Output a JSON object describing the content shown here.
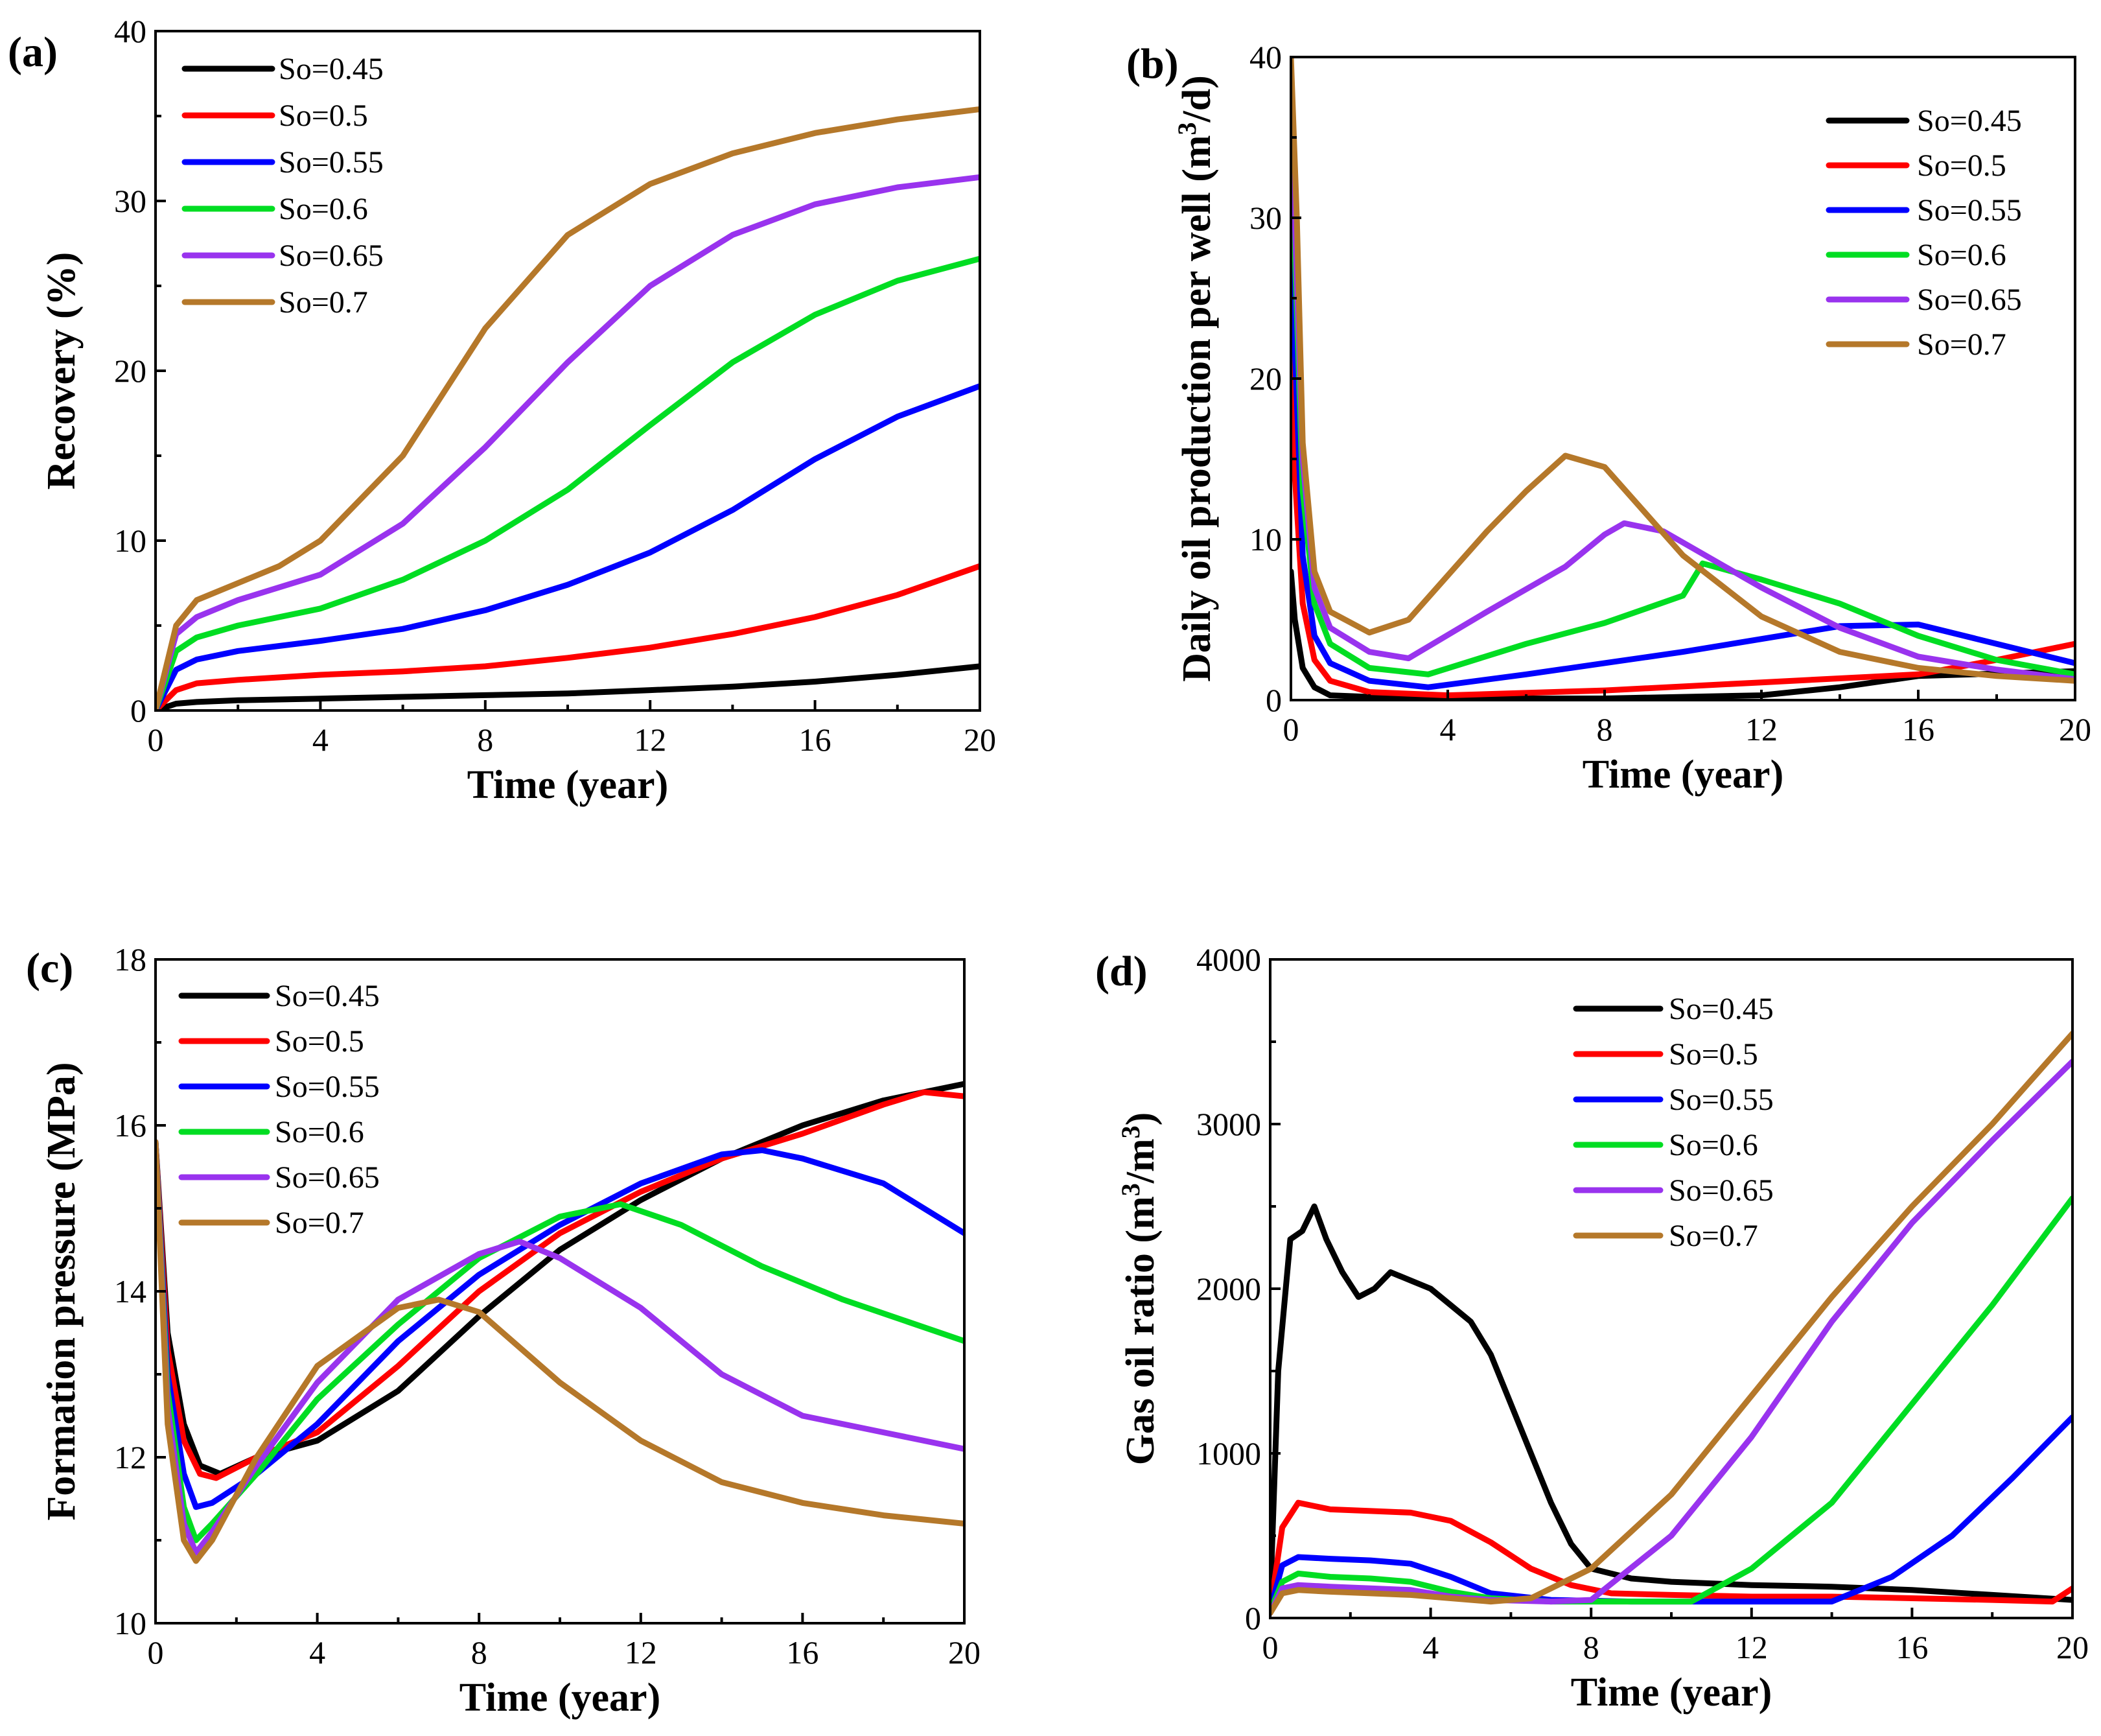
{
  "series_colors": [
    "#000000",
    "#ff0000",
    "#0000ff",
    "#00dd22",
    "#9933ee",
    "#b5782a"
  ],
  "chart_data": [
    {
      "type": "line",
      "panel_label": "(a)",
      "xlabel": "Time (year)",
      "ylabel": "Recovery (%)",
      "xlim": [
        0,
        20
      ],
      "ylim": [
        0,
        40
      ],
      "xticks": [
        "0",
        "4",
        "8",
        "12",
        "16",
        "20"
      ],
      "yticks": [
        "0",
        "10",
        "20",
        "30",
        "40"
      ],
      "legend_position": "top-left",
      "series": [
        {
          "name": "So=0.45",
          "x": [
            0,
            0.5,
            1,
            2,
            4,
            6,
            8,
            10,
            12,
            14,
            16,
            18,
            20
          ],
          "values": [
            0,
            0.4,
            0.5,
            0.6,
            0.7,
            0.8,
            0.9,
            1.0,
            1.2,
            1.4,
            1.7,
            2.1,
            2.6
          ]
        },
        {
          "name": "So=0.5",
          "x": [
            0,
            0.5,
            1,
            2,
            4,
            6,
            8,
            10,
            12,
            14,
            16,
            18,
            20
          ],
          "values": [
            0,
            1.2,
            1.6,
            1.8,
            2.1,
            2.3,
            2.6,
            3.1,
            3.7,
            4.5,
            5.5,
            6.8,
            8.5
          ]
        },
        {
          "name": "So=0.55",
          "x": [
            0,
            0.5,
            1,
            2,
            4,
            6,
            8,
            10,
            12,
            14,
            16,
            18,
            20
          ],
          "values": [
            0,
            2.4,
            3.0,
            3.5,
            4.1,
            4.8,
            5.9,
            7.4,
            9.3,
            11.8,
            14.8,
            17.3,
            19.1
          ]
        },
        {
          "name": "So=0.6",
          "x": [
            0,
            0.5,
            1,
            2,
            4,
            6,
            8,
            10,
            12,
            14,
            16,
            18,
            20
          ],
          "values": [
            0,
            3.5,
            4.3,
            5.0,
            6.0,
            7.7,
            10.0,
            13.0,
            16.8,
            20.5,
            23.3,
            25.3,
            26.6
          ]
        },
        {
          "name": "So=0.65",
          "x": [
            0,
            0.5,
            1,
            2,
            4,
            6,
            8,
            10,
            12,
            14,
            16,
            18,
            20
          ],
          "values": [
            0,
            4.5,
            5.5,
            6.5,
            8.0,
            11.0,
            15.5,
            20.5,
            25.0,
            28.0,
            29.8,
            30.8,
            31.4
          ]
        },
        {
          "name": "So=0.7",
          "x": [
            0,
            0.5,
            1,
            2,
            3,
            4,
            6,
            8,
            10,
            12,
            14,
            16,
            18,
            20
          ],
          "values": [
            0,
            5.0,
            6.5,
            7.5,
            8.5,
            10.0,
            15.0,
            22.5,
            28.0,
            31.0,
            32.8,
            34.0,
            34.8,
            35.4
          ]
        }
      ]
    },
    {
      "type": "line",
      "panel_label": "(b)",
      "xlabel": "Time (year)",
      "ylabel_main": "Daily oil production per well (m",
      "ylabel_sup": "3",
      "ylabel_end": "/d)",
      "xlim": [
        0,
        20
      ],
      "ylim": [
        0,
        40
      ],
      "xticks": [
        "0",
        "4",
        "8",
        "12",
        "16",
        "20"
      ],
      "yticks": [
        "0",
        "10",
        "20",
        "30",
        "40"
      ],
      "legend_position": "top-right",
      "series": [
        {
          "name": "So=0.45",
          "x": [
            0,
            0.1,
            0.3,
            0.6,
            1,
            2,
            4,
            8,
            12,
            14,
            16,
            20
          ],
          "values": [
            8,
            5,
            2,
            0.8,
            0.3,
            0.2,
            0.1,
            0.1,
            0.3,
            0.8,
            1.5,
            1.8
          ]
        },
        {
          "name": "So=0.5",
          "x": [
            0,
            0.1,
            0.3,
            0.6,
            1,
            2,
            4,
            8,
            12,
            16,
            18,
            20
          ],
          "values": [
            22,
            14,
            6,
            2.5,
            1.2,
            0.5,
            0.3,
            0.6,
            1.1,
            1.6,
            2.5,
            3.5
          ]
        },
        {
          "name": "So=0.55",
          "x": [
            0,
            0.1,
            0.3,
            0.6,
            1,
            2,
            3.5,
            6,
            10,
            14,
            16,
            18,
            20
          ],
          "values": [
            35,
            22,
            9,
            4,
            2.3,
            1.2,
            0.8,
            1.6,
            3.0,
            4.6,
            4.7,
            3.5,
            2.3
          ]
        },
        {
          "name": "So=0.6",
          "x": [
            0,
            0.1,
            0.3,
            0.6,
            1,
            2,
            3.5,
            6,
            8,
            10,
            10.5,
            12,
            14,
            16,
            18,
            20
          ],
          "values": [
            38,
            28,
            13,
            6,
            3.5,
            2.0,
            1.6,
            3.5,
            4.8,
            6.5,
            8.5,
            7.5,
            6.0,
            4.0,
            2.5,
            1.6
          ]
        },
        {
          "name": "So=0.65",
          "x": [
            0,
            0.1,
            0.3,
            0.6,
            1,
            2,
            3,
            5,
            7,
            8,
            8.5,
            9.5,
            12,
            14,
            16,
            18,
            20
          ],
          "values": [
            39,
            30,
            15,
            7,
            4.5,
            3.0,
            2.6,
            5.5,
            8.3,
            10.3,
            11.0,
            10.5,
            7.0,
            4.5,
            2.7,
            1.9,
            1.3
          ]
        },
        {
          "name": "So=0.7",
          "x": [
            0,
            0.15,
            0.3,
            0.6,
            1,
            2,
            3,
            5,
            6,
            7,
            8,
            10,
            12,
            14,
            16,
            18,
            20
          ],
          "values": [
            40,
            30,
            16,
            8,
            5.5,
            4.2,
            5.0,
            10.5,
            13.0,
            15.2,
            14.5,
            9.0,
            5.2,
            3.0,
            2.0,
            1.5,
            1.2
          ]
        }
      ]
    },
    {
      "type": "line",
      "panel_label": "(c)",
      "xlabel": "Time (year)",
      "ylabel": "Formation pressure (MPa)",
      "xlim": [
        0,
        20
      ],
      "ylim": [
        10,
        18
      ],
      "xticks": [
        "0",
        "4",
        "8",
        "12",
        "16",
        "20"
      ],
      "yticks": [
        "10",
        "12",
        "14",
        "16",
        "18"
      ],
      "legend_position": "top-left",
      "series": [
        {
          "name": "So=0.45",
          "x": [
            0,
            0.3,
            0.7,
            1.1,
            1.6,
            2.5,
            4,
            6,
            8,
            10,
            12,
            14,
            16,
            18,
            20
          ],
          "values": [
            15.8,
            13.5,
            12.4,
            11.9,
            11.8,
            12.0,
            12.2,
            12.8,
            13.7,
            14.5,
            15.1,
            15.6,
            16.0,
            16.3,
            16.5
          ]
        },
        {
          "name": "So=0.5",
          "x": [
            0,
            0.3,
            0.7,
            1.1,
            1.5,
            2.5,
            4,
            6,
            8,
            10,
            12,
            14,
            16,
            18,
            19,
            20
          ],
          "values": [
            15.8,
            13.3,
            12.2,
            11.8,
            11.75,
            12.0,
            12.3,
            13.1,
            14.0,
            14.7,
            15.2,
            15.6,
            15.9,
            16.25,
            16.4,
            16.35
          ]
        },
        {
          "name": "So=0.55",
          "x": [
            0,
            0.3,
            0.7,
            1.0,
            1.4,
            2.5,
            4,
            6,
            8,
            10,
            12,
            14,
            15,
            16,
            18,
            20
          ],
          "values": [
            15.8,
            13.0,
            11.8,
            11.4,
            11.45,
            11.8,
            12.4,
            13.4,
            14.2,
            14.8,
            15.3,
            15.65,
            15.7,
            15.6,
            15.3,
            14.7
          ]
        },
        {
          "name": "So=0.6",
          "x": [
            0,
            0.3,
            0.7,
            1.0,
            1.4,
            2.5,
            4,
            6,
            8,
            10,
            11.5,
            13,
            15,
            17,
            20
          ],
          "values": [
            15.8,
            12.8,
            11.4,
            11.0,
            11.2,
            11.8,
            12.7,
            13.6,
            14.4,
            14.9,
            15.05,
            14.8,
            14.3,
            13.9,
            13.4
          ]
        },
        {
          "name": "So=0.65",
          "x": [
            0,
            0.3,
            0.7,
            1.0,
            1.4,
            2.5,
            4,
            6,
            8,
            9,
            10,
            12,
            14,
            16,
            18,
            20
          ],
          "values": [
            15.8,
            12.6,
            11.2,
            10.85,
            11.1,
            11.9,
            12.9,
            13.9,
            14.45,
            14.6,
            14.4,
            13.8,
            13.0,
            12.5,
            12.3,
            12.1
          ]
        },
        {
          "name": "So=0.7",
          "x": [
            0,
            0.3,
            0.7,
            1.0,
            1.4,
            2.5,
            4,
            6,
            7,
            8,
            10,
            12,
            14,
            16,
            18,
            20
          ],
          "values": [
            15.8,
            12.4,
            11.0,
            10.75,
            11.0,
            12.0,
            13.1,
            13.8,
            13.9,
            13.75,
            12.9,
            12.2,
            11.7,
            11.45,
            11.3,
            11.2
          ]
        }
      ]
    },
    {
      "type": "line",
      "panel_label": "(d)",
      "xlabel": "Time (year)",
      "ylabel_main": "Gas oil ratio  (m",
      "ylabel_sup": "3",
      "ylabel_mid": "/m",
      "ylabel_sup2": "3",
      "ylabel_end": ")",
      "xlim": [
        0,
        20
      ],
      "ylim": [
        0,
        4000
      ],
      "xticks": [
        "0",
        "4",
        "8",
        "12",
        "16",
        "20"
      ],
      "yticks": [
        "0",
        "1000",
        "2000",
        "3000",
        "4000"
      ],
      "legend_position": "top-center",
      "series": [
        {
          "name": "So=0.45",
          "x": [
            0,
            0.2,
            0.5,
            0.8,
            1.1,
            1.4,
            1.8,
            2.2,
            2.6,
            3.0,
            3.5,
            4.0,
            4.5,
            5.0,
            5.5,
            6.0,
            6.5,
            7.0,
            7.5,
            8.0,
            9,
            10,
            12,
            14,
            16,
            18,
            20
          ],
          "values": [
            100,
            1500,
            2300,
            2350,
            2500,
            2300,
            2100,
            1950,
            2000,
            2100,
            2050,
            2000,
            1900,
            1800,
            1600,
            1300,
            1000,
            700,
            450,
            300,
            240,
            220,
            200,
            190,
            170,
            140,
            110
          ]
        },
        {
          "name": "So=0.5",
          "x": [
            0,
            0.3,
            0.7,
            1.5,
            2.5,
            3.5,
            4.5,
            5.5,
            6.5,
            7.5,
            8.5,
            10,
            12,
            14,
            16,
            18,
            19.5,
            20
          ],
          "values": [
            50,
            550,
            700,
            660,
            650,
            640,
            590,
            460,
            300,
            200,
            150,
            140,
            130,
            130,
            120,
            110,
            100,
            180
          ]
        },
        {
          "name": "So=0.55",
          "x": [
            0,
            0.3,
            0.7,
            1.5,
            2.5,
            3.5,
            4.5,
            5.5,
            7,
            9,
            12,
            14,
            15.5,
            17,
            18.5,
            20
          ],
          "values": [
            50,
            320,
            370,
            360,
            350,
            330,
            250,
            150,
            110,
            100,
            100,
            100,
            250,
            500,
            850,
            1220
          ]
        },
        {
          "name": "So=0.6",
          "x": [
            0,
            0.3,
            0.7,
            1.5,
            2.5,
            3.5,
            4.5,
            5.5,
            7,
            9,
            10.5,
            12,
            14,
            16,
            18,
            20
          ],
          "values": [
            40,
            220,
            270,
            250,
            240,
            220,
            160,
            120,
            100,
            100,
            100,
            300,
            700,
            1300,
            1900,
            2550
          ]
        },
        {
          "name": "So=0.65",
          "x": [
            0,
            0.3,
            0.7,
            1.5,
            2.5,
            3.5,
            4.5,
            5.5,
            7,
            8,
            10,
            12,
            14,
            16,
            18,
            20
          ],
          "values": [
            30,
            180,
            200,
            190,
            180,
            170,
            130,
            110,
            100,
            110,
            500,
            1100,
            1800,
            2400,
            2900,
            3380
          ]
        },
        {
          "name": "So=0.7",
          "x": [
            0,
            0.3,
            0.7,
            1.5,
            2.5,
            3.5,
            4.5,
            5.5,
            6.5,
            8,
            10,
            12,
            14,
            16,
            18,
            20
          ],
          "values": [
            30,
            150,
            170,
            160,
            150,
            140,
            120,
            100,
            120,
            300,
            750,
            1350,
            1950,
            2500,
            3000,
            3550
          ]
        }
      ]
    }
  ]
}
